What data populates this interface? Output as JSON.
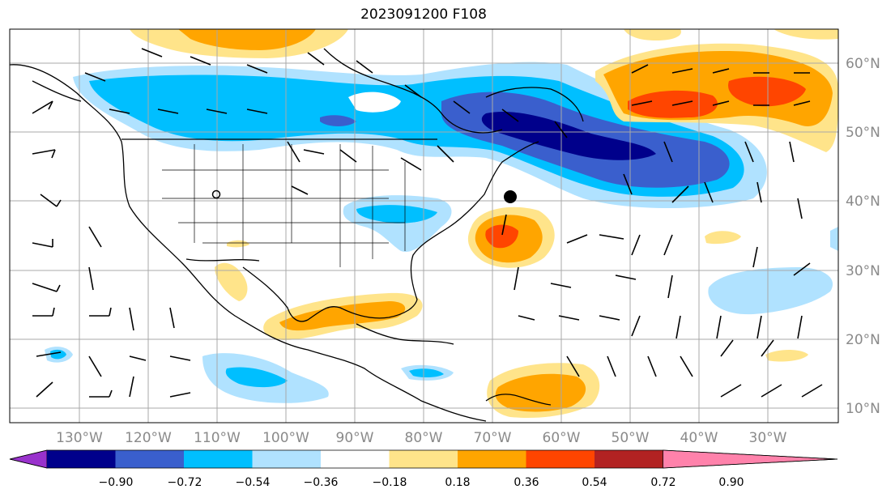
{
  "title": "2023091200 F108",
  "map": {
    "lon_labels": [
      "130°W",
      "120°W",
      "110°W",
      "100°W",
      "90°W",
      "80°W",
      "70°W",
      "60°W",
      "50°W",
      "40°W",
      "30°W"
    ],
    "lat_labels": [
      "60°N",
      "50°N",
      "40°N",
      "30°N",
      "20°N",
      "10°N"
    ]
  },
  "colorbar": {
    "ticks": [
      "−0.90",
      "−0.72",
      "−0.54",
      "−0.36",
      "−0.18",
      "0.18",
      "0.36",
      "0.54",
      "0.72",
      "0.90"
    ],
    "colors": [
      "#9932cc",
      "#00008b",
      "#3a5fcd",
      "#00bfff",
      "#b0e2ff",
      "#ffffff",
      "#ffe48a",
      "#ffa500",
      "#ff4500",
      "#b22222",
      "#ff82ab"
    ]
  },
  "palette": {
    "neg1": "#b0e2ff",
    "neg2": "#00bfff",
    "neg3": "#3a5fcd",
    "neg4": "#00008b",
    "pos1": "#ffe48a",
    "pos2": "#ffa500",
    "pos3": "#ff4500",
    "pos4": "#b22222"
  }
}
